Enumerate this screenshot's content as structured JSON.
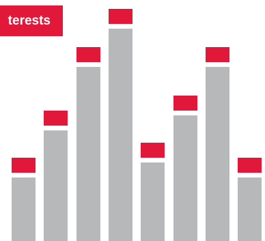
{
  "header": {
    "title": "terests"
  },
  "colors": {
    "accent": "#e2183a",
    "bar": "#b7b8ba",
    "background": "#ffffff"
  },
  "chart_data": {
    "type": "bar",
    "categories": [
      "",
      "",
      "",
      "",
      "",
      "",
      "",
      ""
    ],
    "values": [
      93,
      162,
      255,
      311,
      115,
      184,
      255,
      93
    ],
    "ylim": [
      0,
      311
    ],
    "grid": false,
    "legend": "none"
  }
}
